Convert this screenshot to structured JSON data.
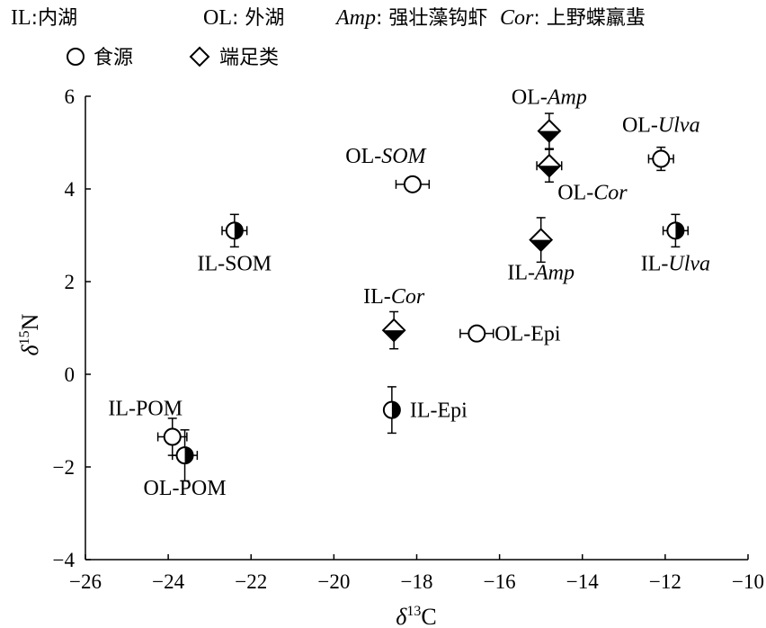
{
  "legend": {
    "row1": [
      {
        "key": "IL",
        "desc": "内湖",
        "italic": false
      },
      {
        "key": "OL",
        "desc": "外湖",
        "italic": false
      },
      {
        "key": "Amp",
        "desc": "强壮藻钩虾",
        "italic": true
      },
      {
        "key": "Cor",
        "desc": "上野蝶羸蜚",
        "italic": true
      }
    ],
    "markers": [
      {
        "shape": "circle",
        "label": "食源"
      },
      {
        "shape": "diamond",
        "label": "端足类"
      }
    ]
  },
  "chart_data": {
    "type": "scatter",
    "xlabel": "δ13C",
    "ylabel": "δ15N",
    "xlim": [
      -26,
      -10
    ],
    "ylim": [
      -4,
      6
    ],
    "x_ticks": [
      -26,
      -24,
      -22,
      -20,
      -18,
      -16,
      -14,
      -12,
      -10
    ],
    "y_ticks": [
      -4,
      -2,
      0,
      2,
      4,
      6
    ],
    "x_tick_labels": [
      "−26",
      "−24",
      "−22",
      "−20",
      "−18",
      "−16",
      "−14",
      "−12",
      "−10"
    ],
    "y_tick_labels": [
      "−4",
      "−2",
      "0",
      "2",
      "4",
      "6"
    ],
    "grid": false,
    "points": [
      {
        "id": "il-pom",
        "prefix": "IL-",
        "name": "POM",
        "italic": false,
        "shape": "circle",
        "fill": "open",
        "x": -23.9,
        "y": -1.35,
        "xerr": 0.35,
        "yerr": 0.4,
        "label_pos": "above-left"
      },
      {
        "id": "ol-pom",
        "prefix": "OL-",
        "name": "POM",
        "italic": false,
        "shape": "circle",
        "fill": "half",
        "x": -23.6,
        "y": -1.75,
        "xerr": 0.3,
        "yerr": 0.55,
        "label_pos": "below"
      },
      {
        "id": "il-som",
        "prefix": "IL-",
        "name": "SOM",
        "italic": false,
        "shape": "circle",
        "fill": "half",
        "x": -22.4,
        "y": 3.1,
        "xerr": 0.3,
        "yerr": 0.35,
        "label_pos": "below"
      },
      {
        "id": "ol-som",
        "prefix": "OL-",
        "name": "SOM",
        "italic": true,
        "shape": "circle",
        "fill": "open",
        "x": -18.1,
        "y": 4.1,
        "xerr": 0.4,
        "yerr": 0.12,
        "label_pos": "above-left"
      },
      {
        "id": "il-epi",
        "prefix": "IL-",
        "name": "Epi",
        "italic": false,
        "shape": "circle",
        "fill": "half",
        "x": -18.6,
        "y": -0.77,
        "xerr": 0.12,
        "yerr": 0.5,
        "label_pos": "right"
      },
      {
        "id": "ol-epi",
        "prefix": "OL-",
        "name": "Epi",
        "italic": false,
        "shape": "circle",
        "fill": "open",
        "x": -16.55,
        "y": 0.88,
        "xerr": 0.4,
        "yerr": 0.1,
        "label_pos": "right"
      },
      {
        "id": "il-cor",
        "prefix": "IL-",
        "name": "Cor",
        "italic": true,
        "shape": "diamond",
        "fill": "half",
        "x": -18.55,
        "y": 0.95,
        "xerr": 0.15,
        "yerr": 0.4,
        "label_pos": "above"
      },
      {
        "id": "il-amp",
        "prefix": "IL-",
        "name": "Amp",
        "italic": true,
        "shape": "diamond",
        "fill": "half",
        "x": -15.0,
        "y": 2.9,
        "xerr": 0.15,
        "yerr": 0.48,
        "label_pos": "below"
      },
      {
        "id": "ol-amp",
        "prefix": "OL-",
        "name": "Amp",
        "italic": true,
        "shape": "diamond",
        "fill": "half",
        "x": -14.8,
        "y": 5.25,
        "xerr": 0.15,
        "yerr": 0.38,
        "label_pos": "above"
      },
      {
        "id": "ol-cor",
        "prefix": "OL-",
        "name": "Cor",
        "italic": true,
        "shape": "diamond",
        "fill": "half",
        "x": -14.8,
        "y": 4.5,
        "xerr": 0.3,
        "yerr": 0.35,
        "label_pos": "below-right"
      },
      {
        "id": "ol-ulva",
        "prefix": "OL-",
        "name": "Ulva",
        "italic": true,
        "shape": "circle",
        "fill": "open",
        "x": -12.1,
        "y": 4.65,
        "xerr": 0.3,
        "yerr": 0.25,
        "label_pos": "above"
      },
      {
        "id": "il-ulva",
        "prefix": "IL-",
        "name": "Ulva",
        "italic": true,
        "shape": "circle",
        "fill": "half",
        "x": -11.75,
        "y": 3.1,
        "xerr": 0.3,
        "yerr": 0.35,
        "label_pos": "below"
      }
    ]
  }
}
